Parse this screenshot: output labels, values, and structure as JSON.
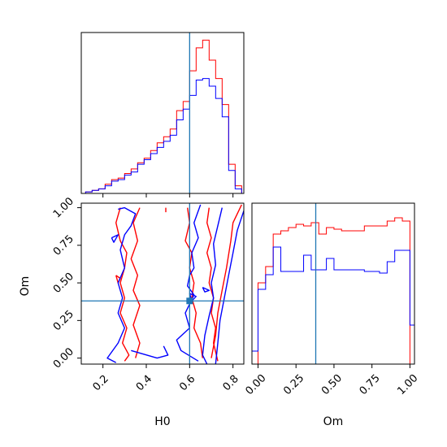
{
  "chart_data": {
    "type": "corner",
    "colors": {
      "series_a": "#ff0000",
      "series_b": "#0000ff",
      "truth": "#1f77b4"
    },
    "parameters": [
      "H0",
      "Om"
    ],
    "truth": {
      "H0": 0.6,
      "Om": 0.38
    },
    "H0_axis": {
      "xlabel": "H0",
      "xlim": [
        0.1,
        0.85
      ],
      "ticks": [
        "0.2",
        "0.4",
        "0.6",
        "0.8"
      ]
    },
    "Om_axis": {
      "label": "Om",
      "lim": [
        -0.04,
        1.03
      ],
      "ticks": [
        "0.00",
        "0.25",
        "0.50",
        "0.75",
        "1.00"
      ]
    },
    "hist_H0": {
      "bin_edges": [
        0.12,
        0.15,
        0.18,
        0.21,
        0.24,
        0.27,
        0.3,
        0.33,
        0.36,
        0.39,
        0.42,
        0.45,
        0.48,
        0.51,
        0.54,
        0.57,
        0.6,
        0.63,
        0.66,
        0.69,
        0.72,
        0.75,
        0.78,
        0.81,
        0.84
      ],
      "series": [
        {
          "color": "red",
          "values": [
            1,
            2,
            3,
            6,
            9,
            10,
            13,
            16,
            20,
            23,
            28,
            33,
            37,
            42,
            54,
            60,
            80,
            95,
            100,
            87,
            75,
            58,
            19,
            5
          ]
        },
        {
          "color": "blue",
          "values": [
            1,
            2,
            3,
            5,
            8,
            9,
            12,
            14,
            19,
            22,
            26,
            30,
            34,
            38,
            48,
            55,
            64,
            74,
            75,
            70,
            62,
            50,
            15,
            3
          ]
        }
      ]
    },
    "hist_Om": {
      "bin_edges": [
        -0.05,
        0.0,
        0.05,
        0.1,
        0.15,
        0.2,
        0.25,
        0.3,
        0.35,
        0.4,
        0.45,
        0.5,
        0.55,
        0.6,
        0.65,
        0.7,
        0.75,
        0.8,
        0.85,
        0.9,
        0.95,
        1.0,
        1.05
      ],
      "series": [
        {
          "color": "red",
          "values": [
            0,
            50,
            60,
            80,
            82,
            84,
            86,
            85,
            87,
            80,
            84,
            83,
            82,
            82,
            82,
            85,
            85,
            85,
            88,
            90,
            88,
            0
          ]
        },
        {
          "color": "blue",
          "values": [
            8,
            46,
            55,
            72,
            57,
            57,
            57,
            67,
            58,
            58,
            65,
            58,
            58,
            58,
            58,
            57,
            57,
            56,
            63,
            70,
            70,
            24
          ]
        }
      ]
    },
    "contours": {
      "x_param": "H0",
      "y_param": "Om",
      "series": [
        {
          "color": "red",
          "paths": [
            [
              [
                0.28,
                1.0
              ],
              [
                0.26,
                0.9
              ],
              [
                0.28,
                0.78
              ],
              [
                0.31,
                0.7
              ],
              [
                0.3,
                0.6
              ],
              [
                0.28,
                0.5
              ],
              [
                0.3,
                0.4
              ],
              [
                0.28,
                0.3
              ],
              [
                0.31,
                0.2
              ],
              [
                0.29,
                0.1
              ],
              [
                0.32,
                0.02
              ],
              [
                0.3,
                -0.02
              ]
            ],
            [
              [
                0.37,
                1.0
              ],
              [
                0.34,
                0.9
              ],
              [
                0.36,
                0.78
              ],
              [
                0.33,
                0.66
              ],
              [
                0.36,
                0.55
              ],
              [
                0.34,
                0.45
              ],
              [
                0.37,
                0.35
              ],
              [
                0.34,
                0.22
              ],
              [
                0.37,
                0.1
              ],
              [
                0.35,
                0.0
              ]
            ],
            [
              [
                0.26,
                0.55
              ],
              [
                0.28,
                0.53
              ],
              [
                0.27,
                0.5
              ],
              [
                0.26,
                0.55
              ]
            ],
            [
              [
                0.59,
                1.0
              ],
              [
                0.6,
                0.9
              ],
              [
                0.58,
                0.78
              ],
              [
                0.61,
                0.7
              ],
              [
                0.6,
                0.6
              ],
              [
                0.62,
                0.5
              ],
              [
                0.61,
                0.4
              ],
              [
                0.63,
                0.3
              ],
              [
                0.62,
                0.2
              ],
              [
                0.65,
                0.1
              ],
              [
                0.66,
                0.0
              ]
            ],
            [
              [
                0.69,
                1.0
              ],
              [
                0.68,
                0.9
              ],
              [
                0.7,
                0.8
              ],
              [
                0.68,
                0.7
              ],
              [
                0.7,
                0.6
              ],
              [
                0.69,
                0.5
              ],
              [
                0.71,
                0.4
              ],
              [
                0.7,
                0.3
              ],
              [
                0.72,
                0.2
              ],
              [
                0.71,
                0.1
              ],
              [
                0.73,
                -0.02
              ]
            ],
            [
              [
                0.84,
                1.02
              ],
              [
                0.8,
                0.9
              ],
              [
                0.79,
                0.78
              ],
              [
                0.77,
                0.6
              ],
              [
                0.75,
                0.45
              ],
              [
                0.73,
                0.3
              ],
              [
                0.72,
                0.15
              ],
              [
                0.7,
                0.0
              ]
            ],
            [
              [
                0.49,
                1.0
              ],
              [
                0.49,
                0.97
              ]
            ]
          ]
        },
        {
          "color": "blue",
          "paths": [
            [
              [
                0.27,
                0.99
              ],
              [
                0.3,
                1.0
              ],
              [
                0.35,
                0.96
              ],
              [
                0.33,
                0.88
              ],
              [
                0.3,
                0.82
              ],
              [
                0.28,
                0.72
              ],
              [
                0.3,
                0.6
              ],
              [
                0.27,
                0.5
              ],
              [
                0.29,
                0.4
              ],
              [
                0.27,
                0.3
              ],
              [
                0.3,
                0.2
              ],
              [
                0.27,
                0.1
              ],
              [
                0.22,
                0.0
              ],
              [
                0.26,
                -0.03
              ]
            ],
            [
              [
                0.24,
                0.8
              ],
              [
                0.27,
                0.82
              ],
              [
                0.25,
                0.77
              ],
              [
                0.24,
                0.8
              ]
            ],
            [
              [
                0.33,
                0.05
              ],
              [
                0.45,
                0.0
              ],
              [
                0.5,
                0.02
              ],
              [
                0.48,
                0.08
              ]
            ],
            [
              [
                0.65,
                1.02
              ],
              [
                0.62,
                0.9
              ],
              [
                0.64,
                0.8
              ],
              [
                0.61,
                0.7
              ],
              [
                0.62,
                0.6
              ],
              [
                0.6,
                0.55
              ],
              [
                0.59,
                0.48
              ],
              [
                0.62,
                0.42
              ],
              [
                0.58,
                0.3
              ],
              [
                0.6,
                0.2
              ],
              [
                0.54,
                0.12
              ],
              [
                0.56,
                0.05
              ],
              [
                0.64,
                -0.02
              ]
            ],
            [
              [
                0.75,
                1.0
              ],
              [
                0.73,
                0.88
              ],
              [
                0.71,
                0.76
              ],
              [
                0.72,
                0.62
              ],
              [
                0.7,
                0.5
              ],
              [
                0.71,
                0.4
              ],
              [
                0.69,
                0.28
              ],
              [
                0.67,
                0.15
              ],
              [
                0.66,
                0.02
              ],
              [
                0.68,
                -0.04
              ]
            ],
            [
              [
                0.85,
                0.98
              ],
              [
                0.82,
                0.85
              ],
              [
                0.8,
                0.7
              ],
              [
                0.78,
                0.55
              ],
              [
                0.76,
                0.4
              ],
              [
                0.74,
                0.25
              ],
              [
                0.73,
                0.1
              ],
              [
                0.72,
                -0.04
              ]
            ],
            [
              [
                0.6,
                0.43
              ],
              [
                0.63,
                0.41
              ],
              [
                0.61,
                0.38
              ],
              [
                0.6,
                0.43
              ]
            ],
            [
              [
                0.66,
                0.47
              ],
              [
                0.69,
                0.45
              ],
              [
                0.67,
                0.44
              ],
              [
                0.66,
                0.47
              ]
            ]
          ]
        }
      ]
    }
  }
}
